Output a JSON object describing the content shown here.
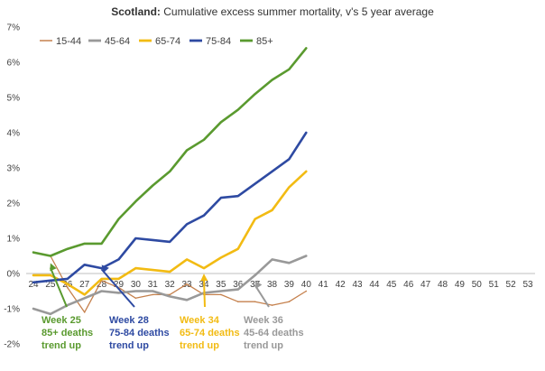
{
  "chart_data": {
    "type": "line",
    "title_bold": "Scotland:",
    "title_rest": " Cumulative excess summer mortality, v's 5 year average",
    "xlabel": "",
    "ylabel": "",
    "x": [
      24,
      25,
      26,
      27,
      28,
      29,
      30,
      31,
      32,
      33,
      34,
      35,
      36,
      37,
      38,
      39,
      40
    ],
    "x_ticks": [
      "24",
      "25",
      "26",
      "27",
      "28",
      "29",
      "30",
      "31",
      "32",
      "33",
      "34",
      "35",
      "36",
      "37",
      "38",
      "39",
      "40",
      "41",
      "42",
      "43",
      "44",
      "45",
      "46",
      "47",
      "48",
      "49",
      "50",
      "51",
      "52",
      "53"
    ],
    "x_range": [
      24,
      53
    ],
    "ylim": [
      -2,
      7
    ],
    "y_ticks": [
      "-2%",
      "-1%",
      "0%",
      "1%",
      "2%",
      "3%",
      "4%",
      "5%",
      "6%",
      "7%"
    ],
    "legend_position": "top-left",
    "grid": false,
    "series": [
      {
        "name": "15-44",
        "color": "#c5814d",
        "values": [
          0.6,
          0.5,
          -0.4,
          -1.1,
          -0.2,
          -0.4,
          -0.7,
          -0.6,
          -0.6,
          -0.3,
          -0.6,
          -0.6,
          -0.8,
          -0.8,
          -0.9,
          -0.8,
          -0.5
        ]
      },
      {
        "name": "45-64",
        "color": "#999999",
        "values": [
          -1.0,
          -1.15,
          -0.9,
          -0.7,
          -0.5,
          -0.55,
          -0.5,
          -0.5,
          -0.65,
          -0.75,
          -0.55,
          -0.5,
          -0.45,
          -0.05,
          0.4,
          0.3,
          0.5
        ]
      },
      {
        "name": "65-74",
        "color": "#f2bb13",
        "values": [
          -0.05,
          -0.05,
          -0.3,
          -0.6,
          -0.15,
          -0.15,
          0.15,
          0.1,
          0.05,
          0.4,
          0.15,
          0.45,
          0.7,
          1.55,
          1.8,
          2.45,
          2.9
        ]
      },
      {
        "name": "75-84",
        "color": "#2e4aa2",
        "values": [
          -0.25,
          -0.2,
          -0.15,
          0.25,
          0.15,
          0.4,
          1.0,
          0.95,
          0.9,
          1.4,
          1.65,
          2.15,
          2.2,
          2.55,
          2.9,
          3.25,
          4.0
        ]
      },
      {
        "name": "85+",
        "color": "#5a9a2f",
        "values": [
          0.6,
          0.5,
          0.7,
          0.85,
          0.85,
          1.55,
          2.05,
          2.5,
          2.9,
          3.5,
          3.8,
          4.3,
          4.65,
          5.1,
          5.5,
          5.8,
          6.4
        ]
      }
    ],
    "annotations": [
      {
        "lines": [
          "Week 25",
          "85+ deaths",
          "trend up"
        ],
        "color": "#5a9a2f",
        "week": 25,
        "y_start": 0.45
      },
      {
        "lines": [
          "Week 28",
          "75-84 deaths",
          "trend up"
        ],
        "color": "#2e4aa2",
        "week": 28,
        "y_start": 0.4
      },
      {
        "lines": [
          "Week 34",
          "65-74 deaths",
          "trend up"
        ],
        "color": "#f2bb13",
        "week": 34,
        "y_start": 0.15
      },
      {
        "lines": [
          "Week 36",
          "45-64 deaths",
          "trend up"
        ],
        "color": "#999999",
        "week": 37,
        "y_start": -0.05
      }
    ]
  }
}
